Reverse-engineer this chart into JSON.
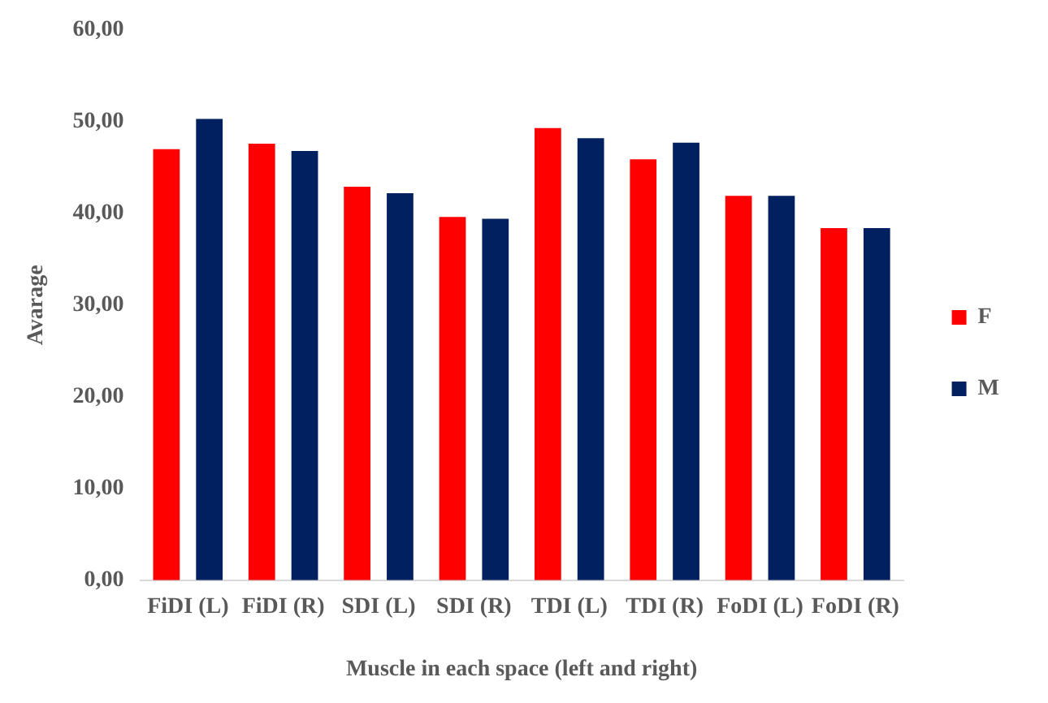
{
  "chart_data": {
    "type": "bar",
    "xlabel": "Muscle in each space (left and right)",
    "ylabel": "Avarage",
    "categories": [
      "FiDI (L)",
      "FiDI (R)",
      "SDI (L)",
      "SDI (R)",
      "TDI (L)",
      "TDI (R)",
      "FoDI (L)",
      "FoDI (R)"
    ],
    "series": [
      {
        "name": "F",
        "color": "#ff0000",
        "values": [
          47.0,
          47.6,
          42.9,
          39.6,
          49.3,
          45.9,
          41.9,
          38.4
        ]
      },
      {
        "name": "M",
        "color": "#002060",
        "values": [
          50.3,
          46.8,
          42.2,
          39.4,
          48.2,
          47.7,
          41.9,
          38.4
        ]
      }
    ],
    "ylim": [
      0,
      60
    ],
    "yticks": [
      {
        "value": 0,
        "label": "0,00"
      },
      {
        "value": 10,
        "label": "10,00"
      },
      {
        "value": 20,
        "label": "20,00"
      },
      {
        "value": 30,
        "label": "30,00"
      },
      {
        "value": 40,
        "label": "40,00"
      },
      {
        "value": 50,
        "label": "50,00"
      },
      {
        "value": 60,
        "label": "60,00"
      }
    ],
    "grid": false,
    "legend": "right"
  }
}
